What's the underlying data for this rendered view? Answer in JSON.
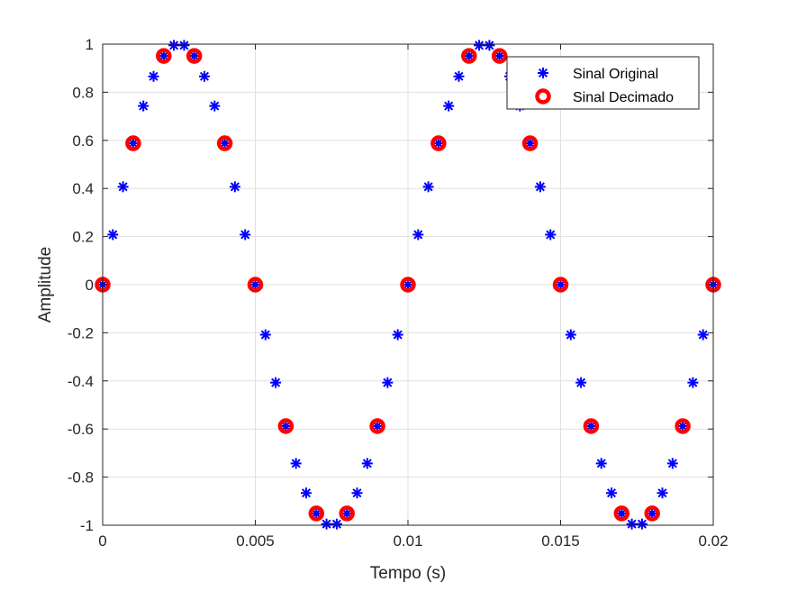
{
  "chart_data": {
    "type": "scatter",
    "title": "",
    "xlabel": "Tempo (s)",
    "ylabel": "Amplitude",
    "xlim": [
      0,
      0.02
    ],
    "ylim": [
      -1,
      1
    ],
    "grid": true,
    "legend_position": "top-right",
    "xticks": [
      "0",
      "0.005",
      "0.01",
      "0.015",
      "0.02"
    ],
    "yticks": [
      "-1",
      "-0.8",
      "-0.6",
      "-0.4",
      "-0.2",
      "0",
      "0.2",
      "0.4",
      "0.6",
      "0.8",
      "1"
    ],
    "series": [
      {
        "name": "Sinal Original",
        "marker": "asterisk",
        "color": "#0000ff",
        "x": [
          0,
          0.000333,
          0.000667,
          0.001,
          0.001333,
          0.001667,
          0.002,
          0.002333,
          0.002667,
          0.003,
          0.003333,
          0.003667,
          0.004,
          0.004333,
          0.004667,
          0.005,
          0.005333,
          0.005667,
          0.006,
          0.006333,
          0.006667,
          0.007,
          0.007333,
          0.007667,
          0.008,
          0.008333,
          0.008667,
          0.009,
          0.009333,
          0.009667,
          0.01,
          0.010333,
          0.010667,
          0.011,
          0.011333,
          0.011667,
          0.012,
          0.012333,
          0.012667,
          0.013,
          0.013333,
          0.013667,
          0.014,
          0.014333,
          0.014667,
          0.015,
          0.015333,
          0.015667,
          0.016,
          0.016333,
          0.016667,
          0.017,
          0.017333,
          0.017667,
          0.018,
          0.018333,
          0.018667,
          0.019,
          0.019333,
          0.019667,
          0.02
        ],
        "y": [
          0,
          0.208,
          0.407,
          0.588,
          0.743,
          0.866,
          0.951,
          0.995,
          0.995,
          0.951,
          0.866,
          0.743,
          0.588,
          0.407,
          0.208,
          0,
          -0.208,
          -0.407,
          -0.588,
          -0.743,
          -0.866,
          -0.951,
          -0.995,
          -0.995,
          -0.951,
          -0.866,
          -0.743,
          -0.588,
          -0.407,
          -0.208,
          0,
          0.208,
          0.407,
          0.588,
          0.743,
          0.866,
          0.951,
          0.995,
          0.995,
          0.951,
          0.866,
          0.743,
          0.588,
          0.407,
          0.208,
          0,
          -0.208,
          -0.407,
          -0.588,
          -0.743,
          -0.866,
          -0.951,
          -0.995,
          -0.995,
          -0.951,
          -0.866,
          -0.743,
          -0.588,
          -0.407,
          -0.208,
          0
        ]
      },
      {
        "name": "Sinal Decimado",
        "marker": "circle",
        "color": "#ff0000",
        "x": [
          0,
          0.001,
          0.002,
          0.003,
          0.004,
          0.005,
          0.006,
          0.007,
          0.008,
          0.009,
          0.01,
          0.011,
          0.012,
          0.013,
          0.014,
          0.015,
          0.016,
          0.017,
          0.018,
          0.019,
          0.02
        ],
        "y": [
          0,
          0.588,
          0.951,
          0.951,
          0.588,
          0,
          -0.588,
          -0.951,
          -0.951,
          -0.588,
          0,
          0.588,
          0.951,
          0.951,
          0.588,
          0,
          -0.588,
          -0.951,
          -0.951,
          -0.588,
          0
        ]
      }
    ]
  }
}
